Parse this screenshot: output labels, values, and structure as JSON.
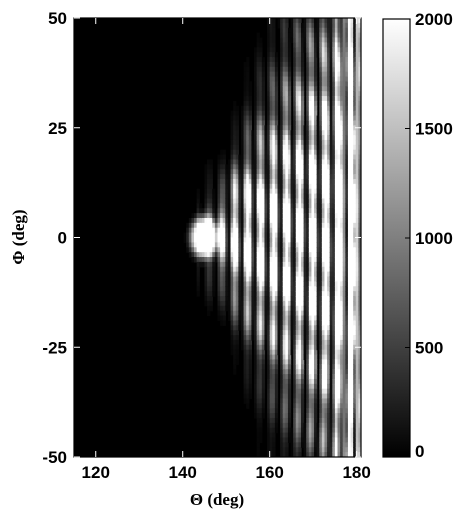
{
  "chart_data": {
    "type": "heatmap",
    "title": "",
    "xlabel": "Θ (deg)",
    "ylabel": "Φ (deg)",
    "xlim": [
      115,
      181
    ],
    "ylim": [
      -50,
      50
    ],
    "x_ticks": [
      120,
      140,
      160,
      180
    ],
    "y_ticks": [
      50,
      25,
      0,
      -25,
      -50
    ],
    "colormap": "gray",
    "colorbar": {
      "range": [
        0,
        2000
      ],
      "ticks": [
        2000,
        1500,
        1000,
        500,
        0
      ]
    },
    "features": {
      "central_spot": {
        "theta": 145,
        "phi": 0,
        "value": 2000
      },
      "fringe_region": {
        "theta_range": [
          150,
          180
        ],
        "phi_range": [
          -50,
          50
        ]
      },
      "dark_region": {
        "theta_range": [
          115,
          140
        ],
        "value": 0
      }
    },
    "grid": false
  },
  "colors": {
    "low": "#000000",
    "high": "#ffffff",
    "axis": "#000000"
  }
}
